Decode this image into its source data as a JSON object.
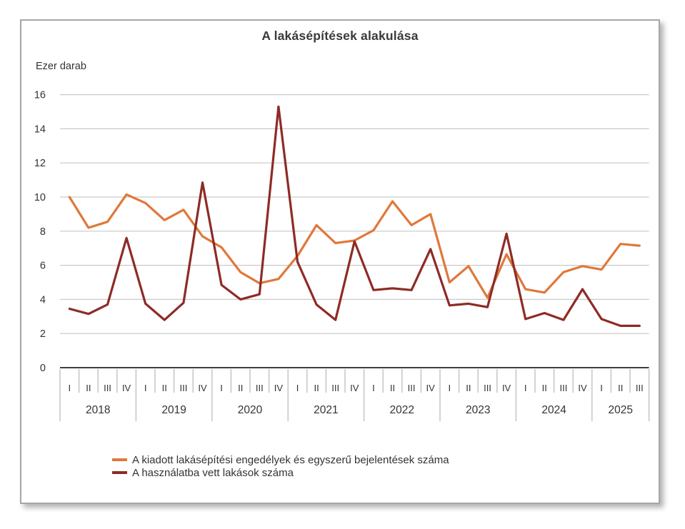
{
  "chart_data": {
    "type": "line",
    "title": "A lakásépítések alakulása",
    "ylabel": "Ezer darab",
    "xlabel": "",
    "ylim": [
      0,
      16
    ],
    "y_ticks": [
      0,
      2,
      4,
      6,
      8,
      10,
      12,
      14,
      16
    ],
    "grid": true,
    "legend_position": "bottom-left",
    "x_axis": {
      "years": [
        {
          "year": "2018",
          "quarters": [
            "I",
            "II",
            "III",
            "IV"
          ]
        },
        {
          "year": "2019",
          "quarters": [
            "I",
            "II",
            "III",
            "IV"
          ]
        },
        {
          "year": "2020",
          "quarters": [
            "I",
            "II",
            "III",
            "IV"
          ]
        },
        {
          "year": "2021",
          "quarters": [
            "I",
            "II",
            "III",
            "IV"
          ]
        },
        {
          "year": "2022",
          "quarters": [
            "I",
            "II",
            "III",
            "IV"
          ]
        },
        {
          "year": "2023",
          "quarters": [
            "I",
            "II",
            "III",
            "IV"
          ]
        },
        {
          "year": "2024",
          "quarters": [
            "I",
            "II",
            "III",
            "IV"
          ]
        },
        {
          "year": "2025",
          "quarters": [
            "I",
            "II",
            "III"
          ]
        }
      ]
    },
    "series": [
      {
        "name": "A kiadott lakásépítési engedélyek és egyszerű bejelentések száma",
        "color": "#E0783A",
        "values": [
          10.0,
          8.2,
          8.55,
          10.15,
          9.65,
          8.65,
          9.25,
          7.7,
          7.05,
          5.6,
          4.95,
          5.2,
          6.55,
          8.35,
          7.3,
          7.45,
          8.05,
          9.75,
          8.35,
          9.0,
          5.0,
          5.95,
          4.1,
          6.65,
          4.6,
          4.4,
          5.6,
          5.95,
          5.75,
          7.25,
          7.15
        ]
      },
      {
        "name": "A használatba vett lakások száma",
        "color": "#8E2B26",
        "values": [
          3.45,
          3.15,
          3.7,
          7.6,
          3.75,
          2.8,
          3.8,
          10.85,
          4.85,
          4.0,
          4.3,
          15.3,
          6.2,
          3.7,
          2.8,
          7.4,
          4.55,
          4.65,
          4.55,
          6.95,
          3.65,
          3.75,
          3.55,
          7.85,
          2.85,
          3.2,
          2.8,
          4.6,
          2.85,
          2.45,
          2.45
        ]
      }
    ],
    "style": {
      "gridline_color": "#c9c9c9",
      "axis_color": "#3f3f3f",
      "tick_color": "#bdbdbd",
      "text_color": "#333333"
    }
  }
}
